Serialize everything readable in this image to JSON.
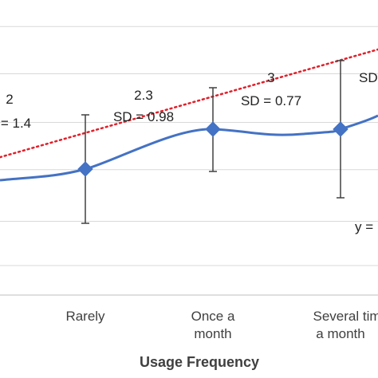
{
  "chart_data": {
    "type": "line",
    "xlabel": "Usage Frequency",
    "categories": [
      "",
      "Rarely",
      "Once a month",
      "Several times a month",
      ""
    ],
    "category_lines": [
      [
        ""
      ],
      [
        "Rarely"
      ],
      [
        "Once a",
        "month"
      ],
      [
        "Several tim",
        "a month"
      ],
      [
        ""
      ]
    ],
    "series": [
      {
        "values": [
          2.0,
          2.1,
          2.3,
          2.3,
          2.65
        ],
        "sd": [
          1.4,
          0.98,
          0.98,
          0.77,
          null
        ],
        "color": "#4472C4",
        "marker": "diamond",
        "smooth": true
      }
    ],
    "error_bars": [
      {
        "center": 2.1,
        "low": 1.6,
        "high": 2.62
      },
      {
        "center": 2.3,
        "low": 2.06,
        "high": 2.53
      },
      {
        "center": 2.3,
        "low": 1.9,
        "high": 2.75
      }
    ],
    "error_bar_index": [
      1,
      2,
      3
    ],
    "trendline": {
      "style": "dotted",
      "color": "#E0202A",
      "start": 2.01,
      "end": 2.6
    },
    "annotations": [
      {
        "lines": [
          "2",
          "= 1.4"
        ]
      },
      {
        "lines": [
          "2.3",
          "SD = 0.98"
        ]
      },
      {
        "lines": [
          "3",
          "SD = 0.77"
        ]
      },
      {
        "lines": [
          "SD"
        ]
      }
    ],
    "trend_equation": "y =",
    "ylim": [
      1.0,
      3.0
    ],
    "gridlines": [
      1.2,
      1.5,
      1.85,
      2.17,
      2.5,
      2.82
    ],
    "grid": true
  }
}
